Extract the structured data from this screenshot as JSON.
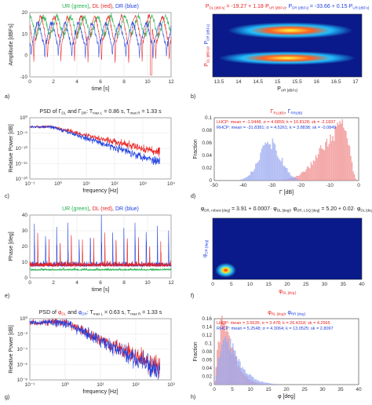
{
  "colors": {
    "green": "#22b14c",
    "red": "#e82020",
    "blue": "#2040e0",
    "pink": "#f08c8c",
    "lightblue": "#9aa8f0",
    "navy": "#0a1a8a"
  },
  "panel_labels": {
    "a": "a)",
    "b": "b)",
    "c": "c)",
    "d": "d)",
    "e": "e)",
    "f": "f)",
    "g": "g)",
    "h": "h)"
  },
  "chart_data": [
    {
      "id": "a",
      "type": "line",
      "title_parts": [
        {
          "text": "UR (green)",
          "color": "#22b14c"
        },
        {
          "text": ", ",
          "color": "#222"
        },
        {
          "text": "DL (red)",
          "color": "#e82020"
        },
        {
          "text": ", ",
          "color": "#222"
        },
        {
          "text": "DR (blue)",
          "color": "#2040e0"
        }
      ],
      "xlabel": "time [s]",
      "ylabel": "Amplitude [dBFs]",
      "xlim": [
        0,
        12
      ],
      "ylim": [
        -10,
        20
      ],
      "xticks": [
        "0",
        "2",
        "4",
        "6",
        "8",
        "10",
        "12"
      ],
      "yticks": [
        "20",
        "10",
        "0",
        "-10"
      ],
      "grid": true,
      "series": [
        {
          "name": "UR (green)",
          "color": "#22b14c",
          "period": 1.15,
          "base": 14,
          "amp": 4,
          "dip": -2
        },
        {
          "name": "DL (red)",
          "color": "#e82020",
          "period": 1.15,
          "base": 12,
          "amp": 6,
          "dip": -9
        },
        {
          "name": "DR (blue)",
          "color": "#2040e0",
          "period": 1.15,
          "base": 10,
          "amp": 5,
          "dip": -6
        }
      ]
    },
    {
      "id": "b",
      "type": "heatmap",
      "title": "P_DL [dBFs] = -19.27 + 1.18·P_UR [dBFs],  P_DR [dBFs] = -33.66 + 0.15·P_UR [dBFs]",
      "title_left": "P",
      "title_left_sub": "DL [dBFs]",
      "title_eq1": " = -19.27 + 1.18·P",
      "title_eq1_sub": "UR [dBFs]",
      "title_right": ", P",
      "title_right_sub": "DR [dBFs]",
      "title_eq2": " = -33.66 + 0.15·P",
      "title_eq2_sub": "UR [dBFs]",
      "xlabel": "P_UR [dBFs]",
      "xlabel_main": "P",
      "xlabel_sub": "UR [dBFs]",
      "ylabel_a": "P",
      "ylabel_a_sub": "DL [dBFs]",
      "ylabel_b": ", P",
      "ylabel_b_sub": "DR [dBFs]",
      "xlim": [
        13,
        17.2
      ],
      "xticks": [
        "13.5",
        "14",
        "14.5",
        "15",
        "15.5",
        "16",
        "16.5",
        "17"
      ]
    },
    {
      "id": "c",
      "type": "line",
      "title": "PSD of Γ_DL and Γ_DR: T_max L = 0.86 s, T_max R = 1.33 s",
      "xlabel": "frequency [Hz]",
      "ylabel": "Relative Power [dB]",
      "log_x": true,
      "log_y": true,
      "xticks": [
        "10⁻¹",
        "10⁰",
        "10¹",
        "10²",
        "10³",
        "10⁴"
      ],
      "yticks": [
        "10⁰",
        "10⁻⁵",
        "10⁻¹⁰",
        "10⁻¹⁵",
        "10⁻²⁰"
      ],
      "grid": true,
      "series": [
        {
          "name": "DL",
          "color": "#e82020",
          "level": -3,
          "knee": 0.6,
          "slope": -2.2,
          "floor": -11
        },
        {
          "name": "DR",
          "color": "#2040e0",
          "level": -3,
          "knee": 0.6,
          "slope": -3,
          "floor": -14
        }
      ]
    },
    {
      "id": "d",
      "type": "histogram",
      "title": "Γ_RR , Γ_RR",
      "xlabel": "Γ [dB]",
      "ylabel": "Fraction",
      "xlim": [
        -55,
        5
      ],
      "ylim": [
        0,
        0.1
      ],
      "xticks": [
        "-50",
        "-40",
        "-30",
        "-20",
        "-10",
        "0"
      ],
      "yticks": [
        "0.1",
        "0.08",
        "0.06",
        "0.04",
        "0.02",
        "0"
      ],
      "legend": [
        {
          "text": "LHCP: mean = -1.9448, σ = 4.6859; k = 10.8128; sk = -2.1837",
          "color": "#e82020"
        },
        {
          "text": "RHCP: mean = -31.8381; σ = 4.5261; k = 3.8838; sk = -0.0849",
          "color": "#2040e0"
        }
      ],
      "series": [
        {
          "name": "LHCP",
          "color": "#f08c8c",
          "mean": -1.9,
          "sd": 4.7,
          "peak": 0.085,
          "skew": -1
        },
        {
          "name": "RHCP",
          "color": "#9aa8f0",
          "mean": -31.8,
          "sd": 4.5,
          "peak": 0.06,
          "skew": 0
        }
      ]
    },
    {
      "id": "e",
      "type": "line",
      "title_parts": [
        {
          "text": "UR (green)",
          "color": "#22b14c"
        },
        {
          "text": ", ",
          "color": "#222"
        },
        {
          "text": "DL (red)",
          "color": "#e82020"
        },
        {
          "text": ", ",
          "color": "#222"
        },
        {
          "text": "DR (blue)",
          "color": "#2040e0"
        }
      ],
      "xlabel": "time [s]",
      "ylabel": "Phase [deg]",
      "xlim": [
        0,
        12
      ],
      "ylim": [
        -5,
        45
      ],
      "xticks": [
        "0",
        "2",
        "4",
        "6",
        "8",
        "10",
        "12"
      ],
      "yticks": [
        "40",
        "30",
        "20",
        "10",
        "0"
      ],
      "grid": true,
      "series": [
        {
          "name": "UR (green)",
          "color": "#22b14c",
          "base": 1,
          "spike": 2
        },
        {
          "name": "DL (red)",
          "color": "#e82020",
          "base": 4,
          "spike": 30
        },
        {
          "name": "DR (blue)",
          "color": "#2040e0",
          "base": 4,
          "spike": 40
        }
      ]
    },
    {
      "id": "f",
      "type": "heatmap",
      "title": "φ_DR, robust [deg] = 3.91 + 0.0007·φ_DL [deg],  φ_DR, LSQ [deg] = 5.20 + 0.02·φ_DL [deg]",
      "t_a": "φ",
      "t_a_sub": "DR, robust [deg]",
      "t_b": " = 3.91 + 0.0007· φ",
      "t_b_sub": "DL [deg]",
      "t_c": ",  φ",
      "t_c_sub": "DR, LSQ [deg]",
      "t_d": " = 5.20 + 0.02· φ",
      "t_d_sub": "DL [deg]",
      "xlabel_main": "φ",
      "xlabel_sub": "DL [deg]",
      "ylabel_main": "φ",
      "ylabel_sub": "DR [deg]",
      "xlim": [
        0,
        40
      ],
      "xticks": [
        "0",
        "5",
        "10",
        "15",
        "20",
        "25",
        "30",
        "35",
        "40"
      ]
    },
    {
      "id": "g",
      "type": "line",
      "title": "PSD of φ_DL and φ_DR: T_max L = 0.63 s, T_max R = 1.33 s",
      "xlabel": "frequency [Hz]",
      "ylabel": "Relative Power [dB]",
      "log_x": true,
      "log_y": true,
      "xticks": [
        "10⁻¹",
        "10⁰",
        "10¹",
        "10²",
        "10³"
      ],
      "yticks": [
        "10⁰",
        "10⁻²",
        "10⁻⁴",
        "10⁻⁶",
        "10⁻⁸"
      ],
      "grid": true,
      "series": [
        {
          "name": "DL",
          "color": "#e82020",
          "level": -0.5,
          "knee": 1,
          "slope": -2.2,
          "floor": -6.5
        },
        {
          "name": "DR",
          "color": "#2040e0",
          "level": -0.5,
          "knee": 1,
          "slope": -2.4,
          "floor": -7
        }
      ]
    },
    {
      "id": "h",
      "type": "histogram",
      "title": "φ_RL , φ_RR",
      "xlabel": "φ [deg]",
      "ylabel": "Fraction",
      "xlim": [
        0,
        40
      ],
      "ylim": [
        0,
        0.16
      ],
      "xticks": [
        "0",
        "5",
        "10",
        "15",
        "20",
        "25",
        "30",
        "35",
        "40"
      ],
      "yticks": [
        "0.16",
        "0.14",
        "0.12",
        "0.1",
        "0.08",
        "0.06",
        "0.04",
        "0.02",
        "0"
      ],
      "legend": [
        {
          "text": "LHCP: mean = 3.5635; σ = 3.478; k = 26.4318; sk = 4.2565",
          "color": "#e82020"
        },
        {
          "text": "RHCP: mean = 5.2548; σ = 4.3064; k = 13.0525; sk = 2.8097",
          "color": "#2040e0"
        }
      ],
      "series": [
        {
          "name": "LHCP",
          "color": "#f08c8c",
          "mode": 2.5,
          "peak": 0.15
        },
        {
          "name": "RHCP",
          "color": "#9aa8f0",
          "mode": 3.2,
          "peak": 0.11
        }
      ]
    }
  ]
}
